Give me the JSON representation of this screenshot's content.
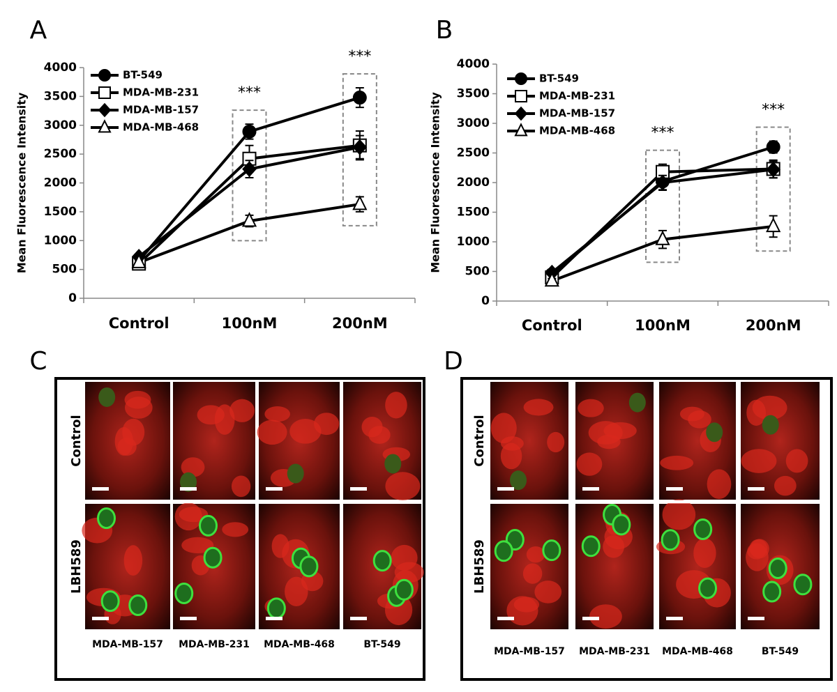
{
  "chart_data": [
    {
      "type": "line",
      "panel_label": "A",
      "y_label": "Mean Fluorescence Intensity",
      "categories": [
        "Control",
        "100nM",
        "200nM"
      ],
      "ylim": [
        0,
        4000
      ],
      "yticks": [
        0,
        500,
        1000,
        1500,
        2000,
        2500,
        3000,
        3500,
        4000
      ],
      "annotations": [
        "***",
        "***"
      ],
      "series": [
        {
          "name": "BT-549",
          "color": "#000000",
          "marker": "circle",
          "values": [
            650,
            2890,
            3480
          ],
          "errors": [
            40,
            130,
            170
          ]
        },
        {
          "name": "MDA-MB-231",
          "color": "#000000",
          "marker": "square",
          "values": [
            600,
            2420,
            2650
          ],
          "errors": [
            40,
            230,
            250
          ]
        },
        {
          "name": "MDA-MB-157",
          "color": "#000000",
          "marker": "diamond",
          "values": [
            720,
            2240,
            2620
          ],
          "errors": [
            40,
            150,
            200
          ]
        },
        {
          "name": "MDA-MB-468",
          "color": "#000000",
          "marker": "triangle",
          "values": [
            620,
            1340,
            1630
          ],
          "errors": [
            40,
            100,
            130
          ]
        }
      ]
    },
    {
      "type": "line",
      "panel_label": "B",
      "y_label": "Mean Fluorescence Intensity",
      "categories": [
        "Control",
        "100nM",
        "200nM"
      ],
      "ylim": [
        0,
        4000
      ],
      "yticks": [
        0,
        500,
        1000,
        1500,
        2000,
        2500,
        3000,
        3500,
        4000
      ],
      "annotations": [
        "***",
        "***"
      ],
      "series": [
        {
          "name": "BT-549",
          "color": "#000000",
          "marker": "circle",
          "values": [
            450,
            2020,
            2600
          ],
          "errors": [
            40,
            150,
            100
          ]
        },
        {
          "name": "MDA-MB-231",
          "color": "#000000",
          "marker": "square",
          "values": [
            400,
            2180,
            2230
          ],
          "errors": [
            40,
            130,
            150
          ]
        },
        {
          "name": "MDA-MB-157",
          "color": "#000000",
          "marker": "diamond",
          "values": [
            480,
            2000,
            2220
          ],
          "errors": [
            40,
            120,
            140
          ]
        },
        {
          "name": "MDA-MB-468",
          "color": "#000000",
          "marker": "triangle",
          "values": [
            340,
            1040,
            1260
          ],
          "errors": [
            40,
            150,
            180
          ]
        }
      ]
    }
  ],
  "panels": [
    {
      "label": "C",
      "rows": [
        "Control",
        "LBH589"
      ],
      "columns": [
        "MDA-MB-157",
        "MDA-MB-231",
        "MDA-MB-468",
        "BT-549"
      ]
    },
    {
      "label": "D",
      "rows": [
        "Control",
        "LBH589"
      ],
      "columns": [
        "MDA-MB-157",
        "MDA-MB-231",
        "MDA-MB-468",
        "BT-549"
      ]
    }
  ]
}
